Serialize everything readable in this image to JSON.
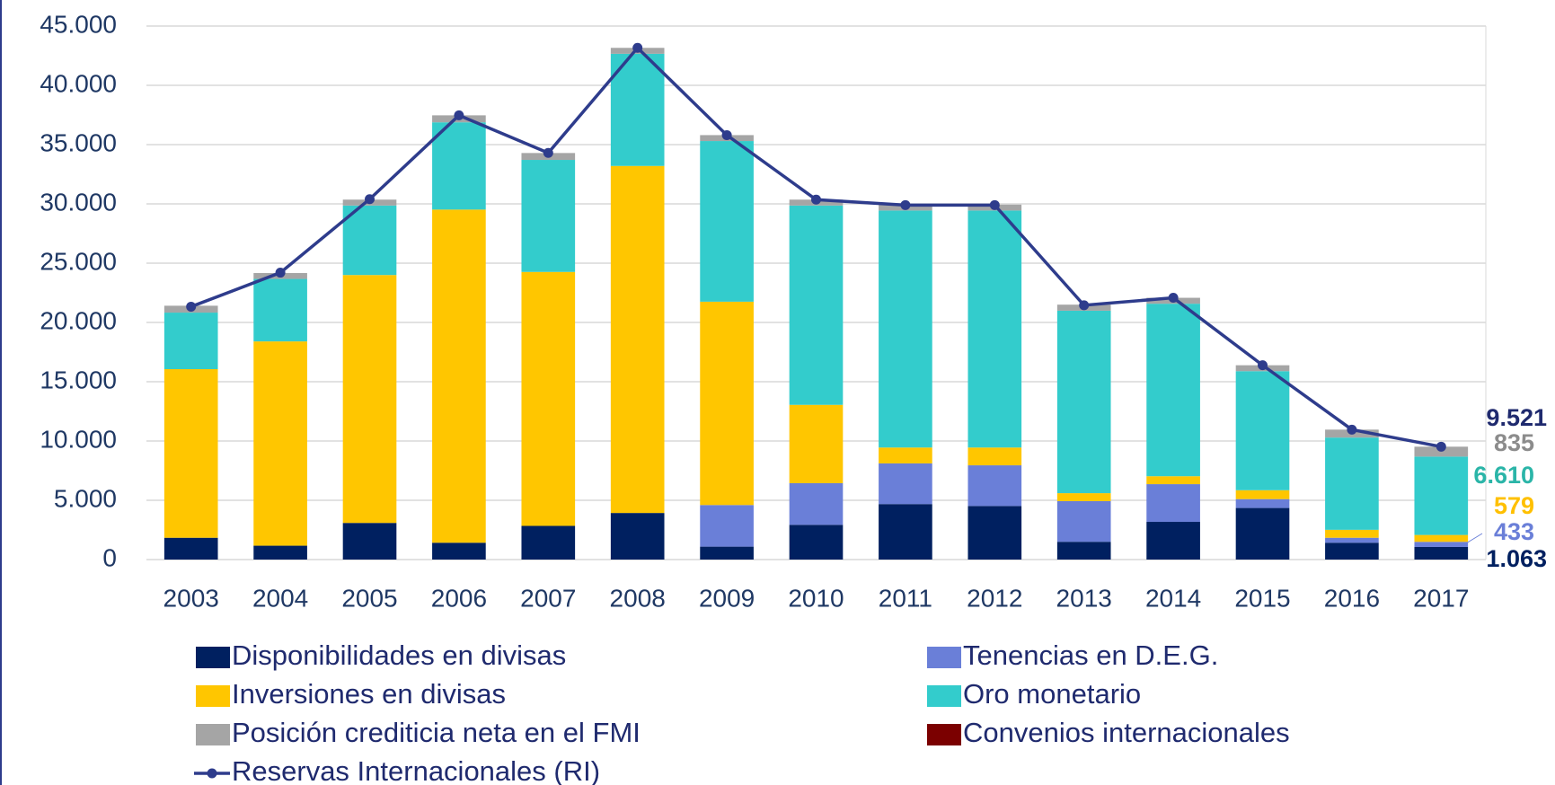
{
  "chart_data": {
    "type": "bar",
    "stacked": true,
    "categories": [
      "2003",
      "2004",
      "2005",
      "2006",
      "2007",
      "2008",
      "2009",
      "2010",
      "2011",
      "2012",
      "2013",
      "2014",
      "2015",
      "2016",
      "2017"
    ],
    "ylim": [
      0,
      45000
    ],
    "yticks": [
      0,
      {
        "value": 5000,
        "label": "5.000"
      },
      {
        "value": 10000,
        "label": "10.000"
      },
      {
        "value": 15000,
        "label": "15.000"
      },
      {
        "value": 20000,
        "label": "20.000"
      },
      {
        "value": 25000,
        "label": "25.000"
      },
      {
        "value": 30000,
        "label": "30.000"
      },
      {
        "value": 35000,
        "label": "35.000"
      },
      {
        "value": 40000,
        "label": "40.000"
      },
      {
        "value": 45000,
        "label": "45.000"
      }
    ],
    "grid": true,
    "series": [
      {
        "name": "Disponibilidades en divisas",
        "color": "#002060",
        "label_color": "#002060",
        "values": [
          1840,
          1170,
          3090,
          1420,
          2840,
          3930,
          1090,
          2930,
          4680,
          4520,
          1500,
          3180,
          4350,
          1420,
          1063
        ],
        "value_labels": [
          null,
          null,
          null,
          null,
          null,
          null,
          null,
          null,
          null,
          null,
          null,
          null,
          null,
          null,
          "1.063"
        ]
      },
      {
        "name": "Tenencias en D.E.G.",
        "color": "#6a7fd8",
        "label_color": "#6a7fd8",
        "values": [
          0,
          0,
          0,
          0,
          0,
          0,
          3510,
          3510,
          3430,
          3430,
          3430,
          3180,
          750,
          420,
          433
        ],
        "value_labels": [
          null,
          null,
          null,
          null,
          null,
          null,
          null,
          null,
          null,
          null,
          null,
          null,
          null,
          null,
          "433"
        ]
      },
      {
        "name": "Inversiones en divisas",
        "color": "#ffc600",
        "label_color": "#ffc000",
        "values": [
          14220,
          17230,
          20910,
          28100,
          21420,
          29270,
          17150,
          6610,
          1340,
          1500,
          670,
          670,
          750,
          670,
          579
        ],
        "value_labels": [
          null,
          null,
          null,
          null,
          null,
          null,
          null,
          null,
          null,
          null,
          null,
          null,
          null,
          null,
          "579"
        ]
      },
      {
        "name": "Oro monetario",
        "color": "#33cccc",
        "label_color": "#2bb5a8",
        "values": [
          4770,
          5270,
          5860,
          7360,
          9450,
          9460,
          13550,
          16810,
          19990,
          19990,
          15390,
          14550,
          10040,
          7780,
          6610
        ],
        "value_labels": [
          null,
          null,
          null,
          null,
          null,
          null,
          null,
          null,
          null,
          null,
          null,
          null,
          null,
          null,
          "6.610"
        ]
      },
      {
        "name": "Posición crediticia neta en el FMI",
        "color": "#a5a5a5",
        "label_color": "#8c8c8c",
        "values": [
          580,
          500,
          500,
          590,
          580,
          500,
          500,
          500,
          500,
          500,
          510,
          500,
          500,
          670,
          835
        ],
        "value_labels": [
          null,
          null,
          null,
          null,
          null,
          null,
          null,
          null,
          null,
          null,
          null,
          null,
          null,
          null,
          "835"
        ]
      },
      {
        "name": "Convenios internacionales",
        "color": "#7b0000",
        "values": [
          0,
          0,
          0,
          0,
          0,
          0,
          0,
          0,
          0,
          0,
          0,
          0,
          0,
          0,
          0
        ]
      },
      {
        "name": "Reservas Internacionales (RI)",
        "type": "line",
        "color": "#2e3c8c",
        "label_color": "#1f2a6e",
        "values": [
          21330,
          24200,
          30400,
          37470,
          34300,
          43160,
          35800,
          30360,
          29900,
          29900,
          21450,
          22080,
          16390,
          10960,
          9521
        ],
        "value_labels": [
          null,
          null,
          null,
          null,
          null,
          null,
          null,
          null,
          null,
          null,
          null,
          null,
          null,
          null,
          "9.521"
        ]
      }
    ]
  }
}
